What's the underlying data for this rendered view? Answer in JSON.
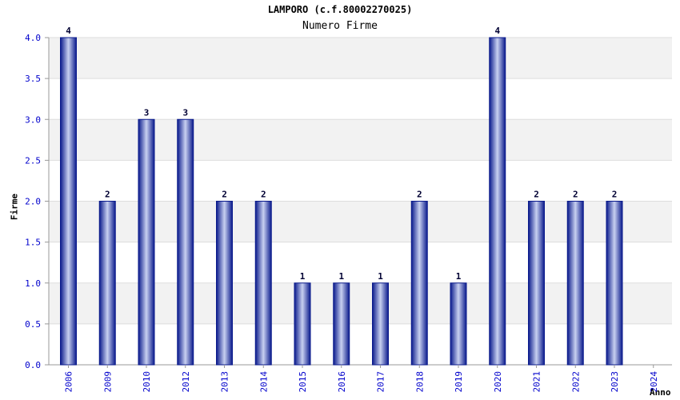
{
  "chart_data": {
    "type": "bar",
    "title": "LAMPORO (c.f.80002270025)",
    "subtitle": "Numero Firme",
    "xlabel": "Anno",
    "ylabel": "Firme",
    "categories": [
      "2006",
      "2009",
      "2010",
      "2012",
      "2013",
      "2014",
      "2015",
      "2016",
      "2017",
      "2018",
      "2019",
      "2020",
      "2021",
      "2022",
      "2023",
      "2024"
    ],
    "values": [
      4,
      2,
      3,
      3,
      2,
      2,
      1,
      1,
      1,
      2,
      1,
      4,
      2,
      2,
      2,
      null
    ],
    "data_labels": [
      "4",
      "2",
      "3",
      "3",
      "2",
      "2",
      "1",
      "1",
      "1",
      "2",
      "1",
      "4",
      "2",
      "2",
      "2",
      ""
    ],
    "ylim": [
      0,
      4
    ],
    "yticks": [
      "0.0",
      "0.5",
      "1.0",
      "1.5",
      "2.0",
      "2.5",
      "3.0",
      "3.5",
      "4.0"
    ],
    "grid": true,
    "colors": {
      "bar_edge": "#0a1a8c",
      "bar_center": "#c8d0f0",
      "tick_label": "#0000cc",
      "band": "#f2f2f2",
      "gridline": "#dddddd"
    }
  }
}
